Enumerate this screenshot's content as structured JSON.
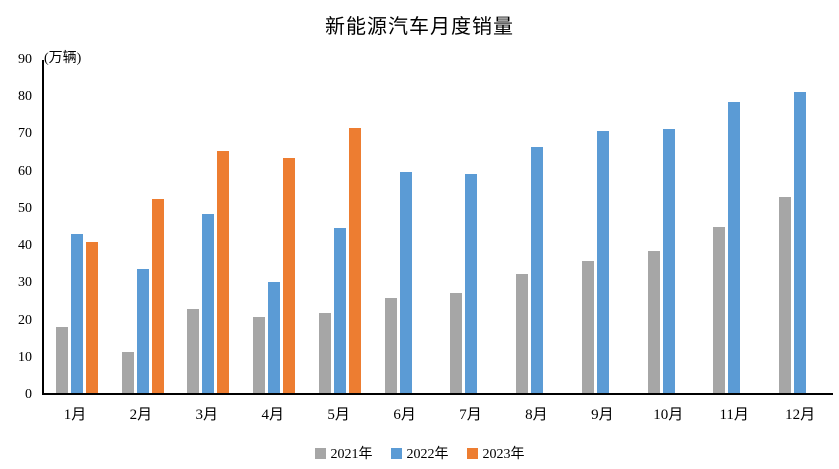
{
  "chart": {
    "title": "新能源汽车月度销量",
    "unit_label": "(万辆)"
  },
  "chart_data": {
    "type": "bar",
    "title": "新能源汽车月度销量",
    "ylabel": "(万辆)",
    "xlabel": "",
    "categories": [
      "1月",
      "2月",
      "3月",
      "4月",
      "5月",
      "6月",
      "7月",
      "8月",
      "9月",
      "10月",
      "11月",
      "12月"
    ],
    "series": [
      {
        "name": "2021年",
        "color": "#A6A6A6",
        "values": [
          17.9,
          11.0,
          22.6,
          20.6,
          21.7,
          25.6,
          27.1,
          32.1,
          35.7,
          38.3,
          45.0,
          53.1
        ]
      },
      {
        "name": "2022年",
        "color": "#5B9BD5",
        "values": [
          43.1,
          33.4,
          48.4,
          29.9,
          44.7,
          59.6,
          59.3,
          66.6,
          70.8,
          71.4,
          78.6,
          81.4
        ]
      },
      {
        "name": "2023年",
        "color": "#ED7D31",
        "values": [
          40.8,
          52.5,
          65.3,
          63.6,
          71.7,
          null,
          null,
          null,
          null,
          null,
          null,
          null
        ]
      }
    ],
    "ylim": [
      0,
      90
    ],
    "ytick_step": 10,
    "grid": false,
    "legend_position": "bottom"
  }
}
